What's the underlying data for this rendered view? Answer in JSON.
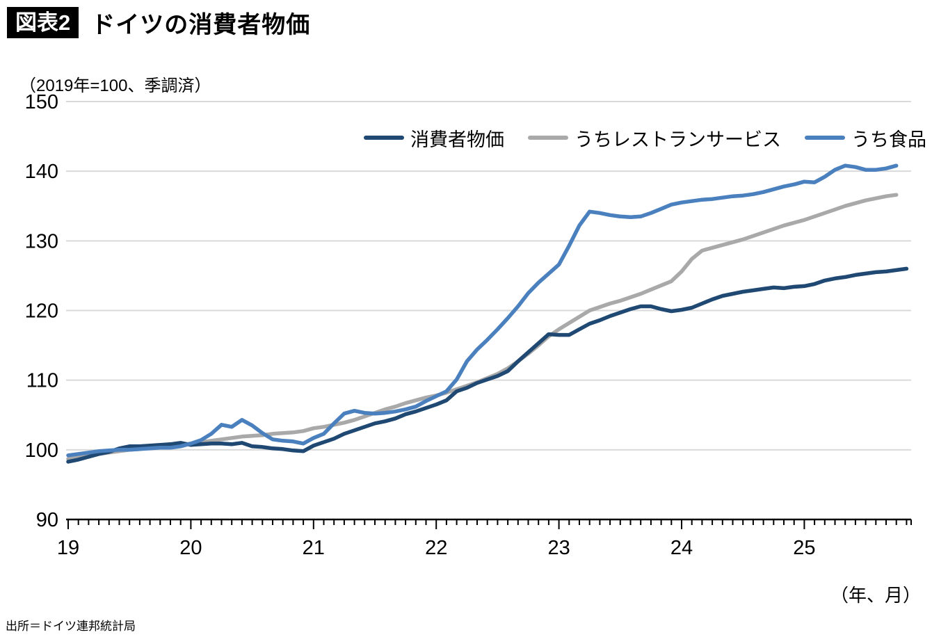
{
  "header": {
    "badge": "図表2",
    "title": "ドイツの消費者物価"
  },
  "subtitle": "（2019年=100、季調済）",
  "axis_note": "（年、月）",
  "source": "出所＝ドイツ連邦統計局",
  "colors": {
    "cpi": "#1F4872",
    "restaurant": "#A9A9A9",
    "food": "#4A80BE",
    "grid": "#D9D9D9",
    "axis": "#000000"
  },
  "chart_data": {
    "type": "line",
    "title": "ドイツの消費者物価",
    "unit_note": "2019年=100、季調済",
    "x_start": "2019-01",
    "x_frequency": "monthly",
    "x_tick_labels": [
      "19",
      "20",
      "21",
      "22",
      "23",
      "24",
      "25"
    ],
    "xlabel": "（年、月）",
    "y_ticks": [
      90,
      100,
      110,
      120,
      130,
      140,
      150
    ],
    "ylim": [
      90,
      150
    ],
    "grid": "horizontal",
    "legend_position": "top-inside",
    "series": [
      {
        "name": "消費者物価",
        "color": "#1F4872",
        "last_month": "2025-11",
        "values": [
          98.3,
          98.6,
          99.0,
          99.4,
          99.7,
          100.2,
          100.5,
          100.5,
          100.6,
          100.7,
          100.8,
          101.0,
          100.7,
          100.8,
          100.9,
          100.9,
          100.8,
          101.0,
          100.5,
          100.4,
          100.2,
          100.1,
          99.9,
          99.8,
          100.6,
          101.1,
          101.6,
          102.3,
          102.8,
          103.3,
          103.8,
          104.1,
          104.5,
          105.1,
          105.5,
          106.0,
          106.5,
          107.1,
          108.4,
          108.9,
          109.6,
          110.1,
          110.6,
          111.3,
          112.7,
          114.0,
          115.3,
          116.6,
          116.5,
          116.5,
          117.3,
          118.1,
          118.6,
          119.2,
          119.7,
          120.2,
          120.6,
          120.6,
          120.2,
          119.9,
          120.1,
          120.4,
          121.0,
          121.6,
          122.1,
          122.4,
          122.7,
          122.9,
          123.1,
          123.3,
          123.2,
          123.4,
          123.5,
          123.8,
          124.3,
          124.6,
          124.8,
          125.1,
          125.3,
          125.5,
          125.6,
          125.8,
          126.0
        ]
      },
      {
        "name": "うちレストランサービス",
        "color": "#A9A9A9",
        "last_month": "2025-10",
        "values": [
          98.7,
          99.0,
          99.2,
          99.4,
          99.6,
          99.8,
          100.0,
          100.1,
          100.3,
          100.4,
          100.5,
          100.7,
          100.9,
          101.1,
          101.3,
          101.5,
          101.7,
          101.9,
          102.0,
          102.1,
          102.3,
          102.4,
          102.5,
          102.7,
          103.1,
          103.3,
          103.6,
          103.9,
          104.3,
          104.8,
          105.3,
          105.8,
          106.2,
          106.7,
          107.1,
          107.5,
          107.8,
          108.2,
          108.7,
          109.2,
          109.7,
          110.3,
          110.9,
          111.7,
          112.7,
          113.8,
          115.0,
          116.3,
          117.3,
          118.2,
          119.1,
          120.0,
          120.5,
          121.0,
          121.4,
          121.9,
          122.4,
          123.0,
          123.6,
          124.2,
          125.6,
          127.4,
          128.6,
          129.0,
          129.4,
          129.8,
          130.2,
          130.7,
          131.2,
          131.7,
          132.2,
          132.6,
          133.0,
          133.5,
          134.0,
          134.5,
          135.0,
          135.4,
          135.8,
          136.1,
          136.4,
          136.6
        ]
      },
      {
        "name": "うち食品",
        "color": "#4A80BE",
        "last_month": "2025-10",
        "values": [
          99.2,
          99.4,
          99.6,
          99.8,
          99.9,
          100.0,
          100.0,
          100.1,
          100.2,
          100.3,
          100.3,
          100.5,
          100.9,
          101.4,
          102.3,
          103.6,
          103.3,
          104.3,
          103.5,
          102.4,
          101.5,
          101.3,
          101.2,
          100.9,
          101.7,
          102.3,
          103.8,
          105.2,
          105.6,
          105.3,
          105.2,
          105.3,
          105.5,
          105.8,
          106.2,
          107.0,
          107.7,
          108.4,
          110.1,
          112.7,
          114.4,
          115.8,
          117.3,
          118.9,
          120.6,
          122.5,
          124.0,
          125.3,
          126.6,
          129.3,
          132.2,
          134.2,
          134.0,
          133.7,
          133.5,
          133.4,
          133.5,
          134.0,
          134.6,
          135.2,
          135.5,
          135.7,
          135.9,
          136.0,
          136.2,
          136.4,
          136.5,
          136.7,
          137.0,
          137.4,
          137.8,
          138.1,
          138.5,
          138.4,
          139.2,
          140.2,
          140.8,
          140.6,
          140.2,
          140.2,
          140.4,
          140.8
        ]
      }
    ]
  }
}
